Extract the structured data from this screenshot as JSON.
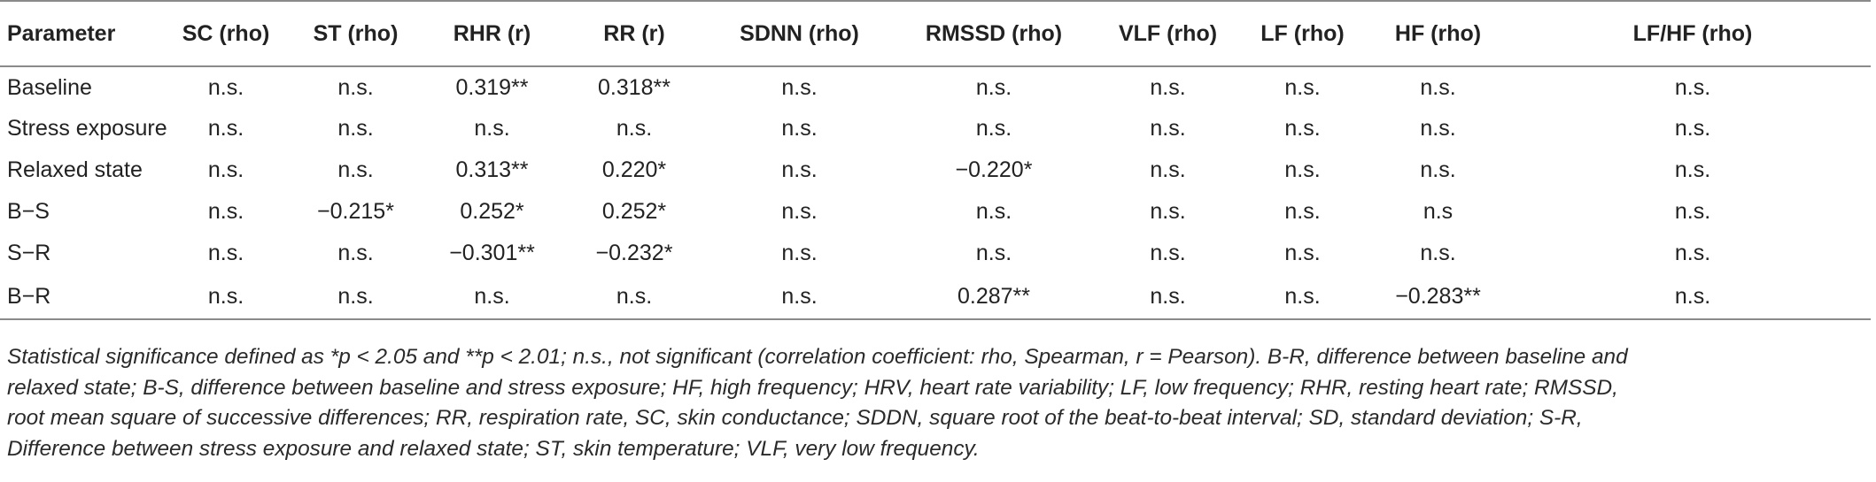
{
  "table": {
    "headers": [
      "Parameter",
      "SC (rho)",
      "ST (rho)",
      "RHR (r)",
      "RR (r)",
      "SDNN (rho)",
      "RMSSD (rho)",
      "VLF (rho)",
      "LF (rho)",
      "HF (rho)",
      "LF/HF (rho)"
    ],
    "rows": [
      [
        "Baseline",
        "n.s.",
        "n.s.",
        "0.319**",
        "0.318**",
        "n.s.",
        "n.s.",
        "n.s.",
        "n.s.",
        "n.s.",
        "n.s."
      ],
      [
        "Stress exposure",
        "n.s.",
        "n.s.",
        "n.s.",
        "n.s.",
        "n.s.",
        "n.s.",
        "n.s.",
        "n.s.",
        "n.s.",
        "n.s."
      ],
      [
        "Relaxed state",
        "n.s.",
        "n.s.",
        "0.313**",
        "0.220*",
        "n.s.",
        "−0.220*",
        "n.s.",
        "n.s.",
        "n.s.",
        "n.s."
      ],
      [
        "B−S",
        "n.s.",
        "−0.215*",
        "0.252*",
        "0.252*",
        "n.s.",
        "n.s.",
        "n.s.",
        "n.s.",
        "n.s",
        "n.s."
      ],
      [
        "S−R",
        "n.s.",
        "n.s.",
        "−0.301**",
        "−0.232*",
        "n.s.",
        "n.s.",
        "n.s.",
        "n.s.",
        "n.s.",
        "n.s."
      ],
      [
        "B−R",
        "n.s.",
        "n.s.",
        "n.s.",
        "n.s.",
        "n.s.",
        "0.287**",
        "n.s.",
        "n.s.",
        "−0.283**",
        "n.s."
      ]
    ]
  },
  "footnote": {
    "lines": [
      "Statistical significance defined as *p < 2.05 and **p < 2.01; n.s., not significant (correlation coefficient: rho, Spearman, r = Pearson). B-R, difference between baseline and",
      "relaxed state; B-S, difference between baseline and stress exposure; HF, high frequency; HRV, heart rate variability; LF, low frequency; RHR, resting heart rate; RMSSD,",
      "root mean square of successive differences; RR, respiration rate, SC, skin conductance; SDDN, square root of the beat-to-beat interval; SD, standard deviation; S-R,",
      "Difference between stress exposure and relaxed state; ST, skin temperature; VLF, very low frequency."
    ]
  }
}
